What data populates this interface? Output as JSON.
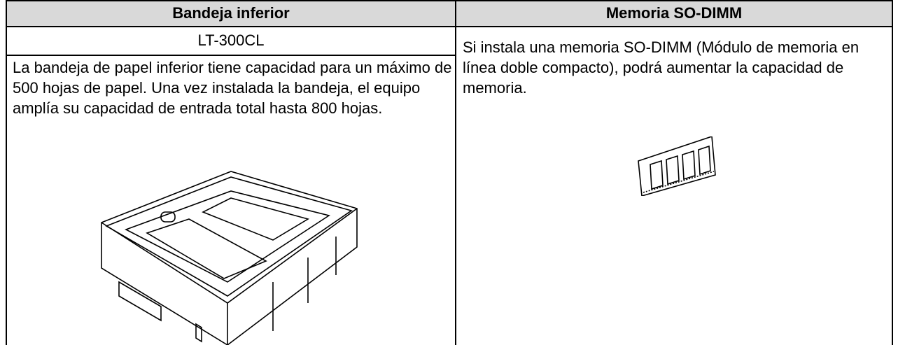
{
  "table": {
    "header": [
      "Bandeja inferior",
      "Memoria SO-DIMM"
    ],
    "left": {
      "model": "LT-300CL",
      "description": "La bandeja de papel inferior tiene capacidad para un máximo de 500 hojas de papel. Una vez instalada la bandeja, el equipo amplía su capacidad de entrada total hasta 800 hojas."
    },
    "right": {
      "description": "Si instala una memoria SO-DIMM (Módulo de memoria en línea doble compacto), podrá aumentar la capacidad de memoria."
    }
  }
}
